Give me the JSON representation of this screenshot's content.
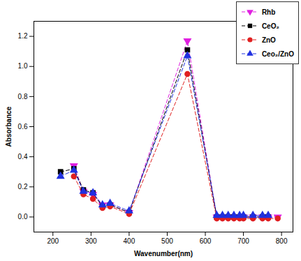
{
  "chart_data": {
    "type": "line",
    "x_label": "Wavenumber(nm)",
    "y_label": "Absorbance",
    "x": [
      220,
      255,
      280,
      305,
      330,
      350,
      400,
      553,
      630,
      645,
      660,
      675,
      690,
      700,
      725,
      750,
      765,
      790
    ],
    "series": [
      {
        "name": "Rhb",
        "color": "#e020e0",
        "marker": "triangle-down",
        "line_style": "dashed",
        "values": [
          null,
          0.34,
          0.17,
          0.15,
          0.08,
          0.08,
          0.03,
          1.17,
          0.0,
          0.0,
          0.0,
          0.0,
          0.0,
          0.0,
          0.0,
          0.0,
          0.0,
          0.0
        ]
      },
      {
        "name": "CeO₂",
        "color": "#000000",
        "marker": "square",
        "line_style": "dashed",
        "values": [
          0.3,
          0.32,
          0.18,
          0.16,
          0.07,
          0.08,
          0.03,
          1.11,
          0.0,
          0.0,
          0.0,
          0.0,
          0.0,
          0.0,
          0.0,
          0.0,
          0.0,
          null
        ]
      },
      {
        "name": "ZnO",
        "color": "#e02020",
        "marker": "circle",
        "line_style": "dashed",
        "values": [
          null,
          0.27,
          0.15,
          0.12,
          0.06,
          0.07,
          0.02,
          0.95,
          -0.01,
          -0.01,
          -0.01,
          -0.01,
          -0.01,
          -0.01,
          -0.01,
          -0.01,
          -0.01,
          -0.01
        ]
      },
      {
        "name": "Ceo₂/ZnO",
        "color": "#2030e0",
        "marker": "triangle",
        "line_style": "dashed",
        "values": [
          0.27,
          0.31,
          0.17,
          0.16,
          0.08,
          0.09,
          0.04,
          1.07,
          0.01,
          0.01,
          0.01,
          0.01,
          0.01,
          0.01,
          0.01,
          0.01,
          0.01,
          null
        ]
      }
    ],
    "xlim": [
      150,
      830
    ],
    "xticks": [
      200,
      300,
      400,
      500,
      600,
      700,
      800
    ],
    "ylim": [
      -0.1,
      1.3
    ],
    "yticks": [
      {
        "value": 0,
        "label": "0.0"
      },
      0.2,
      0.4,
      0.6,
      0.8,
      {
        "value": 1,
        "label": "1.0"
      },
      1.2
    ],
    "legend": "top-right",
    "grid": false
  }
}
